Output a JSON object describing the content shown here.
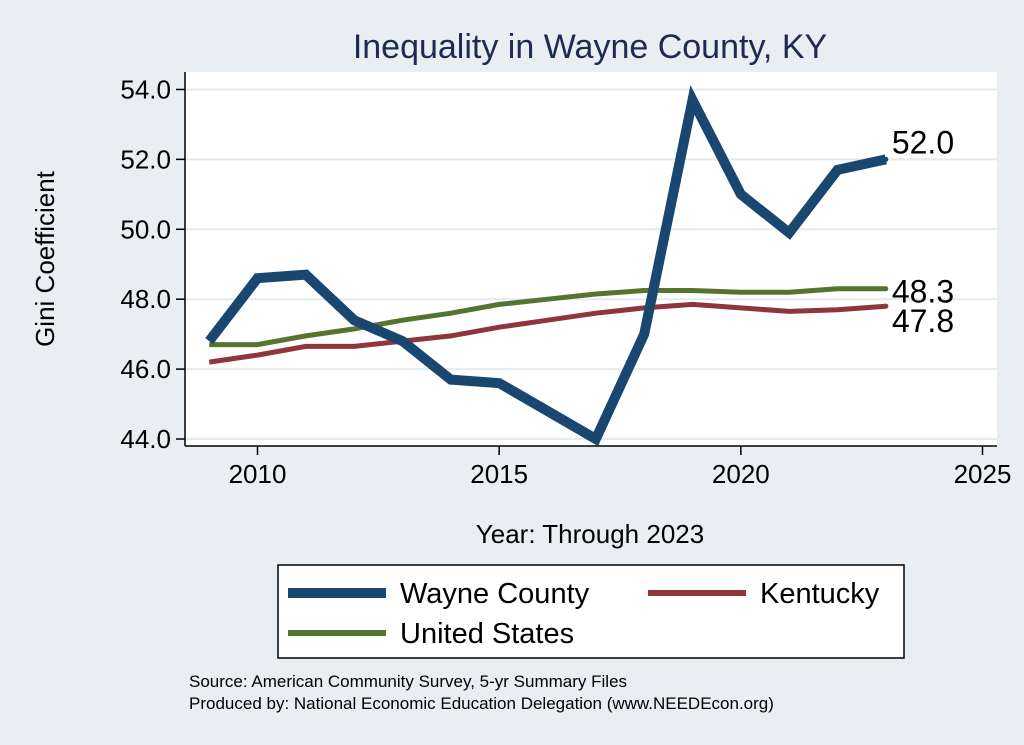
{
  "chart_data": {
    "type": "line",
    "title": "Inequality in Wayne County, KY",
    "xlabel": "Year: Through 2023",
    "ylabel": "Gini Coefficient",
    "xlim": [
      2008.5,
      2025.3
    ],
    "ylim": [
      43.8,
      54.5
    ],
    "x_ticks": [
      2010,
      2015,
      2020,
      2025
    ],
    "y_ticks": [
      44.0,
      46.0,
      48.0,
      50.0,
      52.0,
      54.0
    ],
    "y_tick_labels": [
      "44.0",
      "46.0",
      "48.0",
      "50.0",
      "52.0",
      "54.0"
    ],
    "grid": true,
    "series": [
      {
        "name": "Wayne County",
        "color": "#1a476f",
        "x": [
          2009,
          2010,
          2011,
          2012,
          2013,
          2014,
          2015,
          2016,
          2017,
          2018,
          2019,
          2020,
          2021,
          2022,
          2023
        ],
        "values": [
          46.8,
          48.6,
          48.7,
          47.4,
          46.8,
          45.7,
          45.6,
          44.8,
          44.0,
          47.0,
          53.7,
          51.0,
          49.9,
          51.7,
          52.0
        ],
        "end_label": "52.0"
      },
      {
        "name": "Kentucky",
        "color": "#90353b",
        "x": [
          2009,
          2010,
          2011,
          2012,
          2013,
          2014,
          2015,
          2016,
          2017,
          2018,
          2019,
          2020,
          2021,
          2022,
          2023
        ],
        "values": [
          46.2,
          46.4,
          46.65,
          46.65,
          46.8,
          46.95,
          47.2,
          47.4,
          47.6,
          47.75,
          47.85,
          47.75,
          47.65,
          47.7,
          47.8
        ],
        "end_label": "47.8"
      },
      {
        "name": "United States",
        "color": "#55752f",
        "x": [
          2009,
          2010,
          2011,
          2012,
          2013,
          2014,
          2015,
          2016,
          2017,
          2018,
          2019,
          2020,
          2021,
          2022,
          2023
        ],
        "values": [
          46.7,
          46.7,
          46.95,
          47.15,
          47.4,
          47.6,
          47.85,
          48.0,
          48.15,
          48.25,
          48.25,
          48.2,
          48.2,
          48.3,
          48.3
        ],
        "end_label": "48.3"
      }
    ],
    "legend": {
      "placement": "bottom",
      "entries": [
        "Wayne County",
        "Kentucky",
        "United States"
      ]
    }
  },
  "notes": {
    "source": "Source: American Community Survey, 5-yr Summary Files",
    "produced_by": "Produced by: National Economic Education Delegation (www.NEEDEcon.org)"
  },
  "colors": {
    "background": "#e8eef1",
    "plot_background": "#ffffff",
    "grid": "#e3ebef",
    "title": "#1d2a52"
  }
}
